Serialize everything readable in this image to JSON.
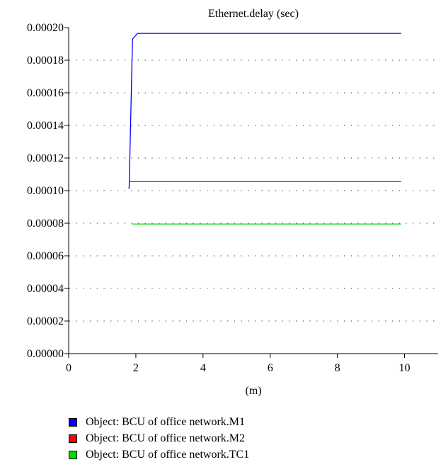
{
  "chart_data": {
    "type": "line",
    "title": "Ethernet.delay (sec)",
    "xlabel": "(m)",
    "ylabel": "",
    "xlim": [
      0,
      11
    ],
    "ylim": [
      0,
      0.0002
    ],
    "x_ticks": [
      "0",
      "2",
      "4",
      "6",
      "8",
      "10"
    ],
    "y_ticks": [
      "0.00000",
      "0.00002",
      "0.00004",
      "0.00006",
      "0.00008",
      "0.00010",
      "0.00012",
      "0.00014",
      "0.00016",
      "0.00018",
      "0.00020"
    ],
    "grid": "horizontal-dotted",
    "legend_position": "bottom",
    "series": [
      {
        "name": "Object: BCU of office network.M1",
        "color": "#0000ff",
        "points": [
          [
            1.8,
            0.000101
          ],
          [
            1.9,
            0.000193
          ],
          [
            2.05,
            0.0001965
          ],
          [
            9.9,
            0.0001965
          ]
        ]
      },
      {
        "name": "Object: BCU of office network.M2",
        "color": "#ff0000",
        "points": [
          [
            1.8,
            0.0001055
          ],
          [
            9.9,
            0.0001055
          ]
        ]
      },
      {
        "name": "Object: BCU of office network.TC1",
        "color": "#00dd00",
        "points": [
          [
            1.9,
            7.95e-05
          ],
          [
            9.9,
            7.95e-05
          ]
        ]
      }
    ]
  }
}
